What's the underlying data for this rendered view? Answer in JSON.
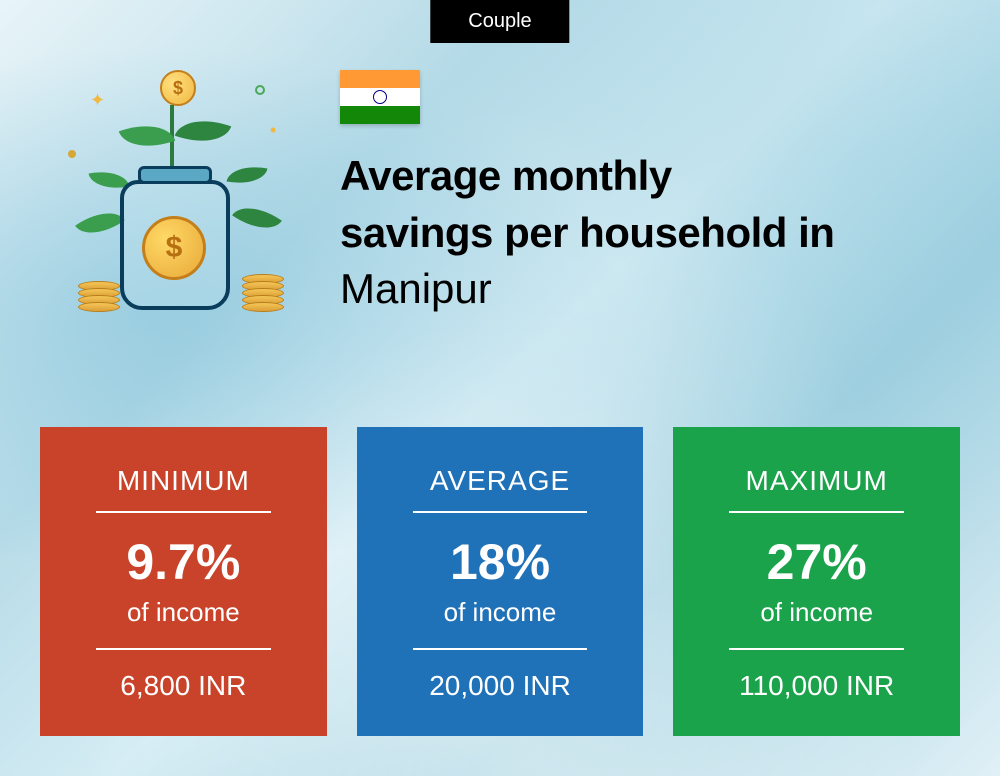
{
  "badge": {
    "label": "Couple",
    "bg": "#000000",
    "color": "#ffffff"
  },
  "header": {
    "title_line1": "Average monthly",
    "title_line2": "savings per household in",
    "location": "Manipur"
  },
  "flag": {
    "saffron": "#ff9933",
    "white": "#ffffff",
    "green": "#138808",
    "chakra": "#000080"
  },
  "cards": [
    {
      "label": "MINIMUM",
      "percent": "9.7%",
      "subtext": "of income",
      "amount": "6,800 INR",
      "bg": "#c8432a"
    },
    {
      "label": "AVERAGE",
      "percent": "18%",
      "subtext": "of income",
      "amount": "20,000 INR",
      "bg": "#1f71b8"
    },
    {
      "label": "MAXIMUM",
      "percent": "27%",
      "subtext": "of income",
      "amount": "110,000 INR",
      "bg": "#1ba34b"
    }
  ],
  "styling": {
    "card_label_fontsize": 28,
    "card_percent_fontsize": 50,
    "card_subtext_fontsize": 26,
    "card_amount_fontsize": 28,
    "title_fontsize": 42,
    "divider_color": "#ffffff"
  }
}
